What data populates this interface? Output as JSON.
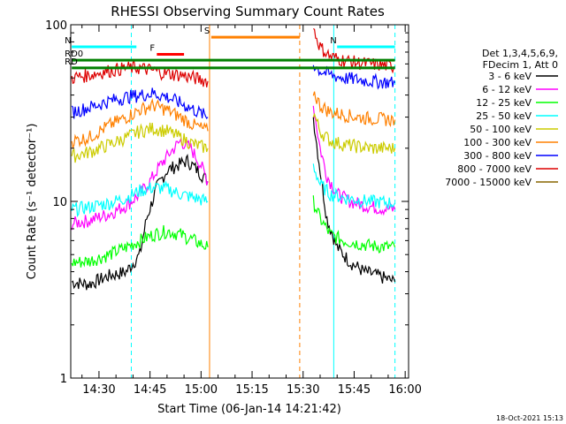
{
  "chart_data": {
    "type": "line",
    "title": "RHESSI Observing Summary Count Rates",
    "xlabel": "Start Time (06-Jan-14 14:21:42)",
    "ylabel": "Count Rate (s⁻¹ detector⁻¹)",
    "y_scale": "log",
    "ylim": [
      1,
      100
    ],
    "x_range": [
      "14:21:42",
      "16:01:00"
    ],
    "x_ticks": [
      "14:30",
      "14:45",
      "15:00",
      "15:15",
      "15:30",
      "15:45",
      "16:00"
    ],
    "y_ticks": [
      "1",
      "10",
      "100"
    ],
    "legend": {
      "placement": "right",
      "header": [
        "Det 1,3,4,5,6,9,",
        "FDecim 1, Att 0"
      ]
    },
    "series": [
      {
        "name": "3 - 6 keV",
        "color": "#000000",
        "x": [
          "14:22:00",
          "14:27:00",
          "14:33:00",
          "14:38:00",
          "14:42:00",
          "14:44:00",
          "14:47:00",
          "14:50:00",
          "14:53:00",
          "14:56:00",
          "14:59:00",
          "15:02:00",
          "15:31:00",
          "15:33:00",
          "15:35:00",
          "15:37:00",
          "15:40:00",
          "15:44:00",
          "15:48:00",
          "15:52:00",
          "15:57:00"
        ],
        "y": [
          3.5,
          3.4,
          3.8,
          4.0,
          5.0,
          8.0,
          12.0,
          15.0,
          16.0,
          17.0,
          15.0,
          13.0,
          null,
          30.0,
          15.0,
          8.0,
          5.5,
          4.5,
          4.0,
          3.8,
          3.5
        ]
      },
      {
        "name": "6 - 12 keV",
        "color": "#ff00ff",
        "x": [
          "14:22:00",
          "14:27:00",
          "14:33:00",
          "14:38:00",
          "14:42:00",
          "14:45:00",
          "14:48:00",
          "14:51:00",
          "14:54:00",
          "14:57:00",
          "15:00:00",
          "15:02:00",
          "15:31:00",
          "15:33:00",
          "15:35:00",
          "15:37:00",
          "15:40:00",
          "15:44:00",
          "15:48:00",
          "15:52:00",
          "15:57:00"
        ],
        "y": [
          7.5,
          7.8,
          8.5,
          9.5,
          11.0,
          13.0,
          16.0,
          19.0,
          22.0,
          20.0,
          16.0,
          13.0,
          null,
          35.0,
          20.0,
          14.0,
          11.0,
          10.0,
          9.5,
          9.2,
          9.0
        ]
      },
      {
        "name": "12 - 25 keV",
        "color": "#00ff00",
        "x": [
          "14:22:00",
          "14:27:00",
          "14:33:00",
          "14:38:00",
          "14:42:00",
          "14:46:00",
          "14:50:00",
          "14:54:00",
          "14:58:00",
          "15:02:00",
          "15:31:00",
          "15:33:00",
          "15:35:00",
          "15:38:00",
          "15:42:00",
          "15:46:00",
          "15:50:00",
          "15:57:00"
        ],
        "y": [
          4.5,
          4.6,
          5.0,
          5.5,
          6.0,
          6.5,
          6.8,
          6.5,
          6.0,
          5.5,
          null,
          10.0,
          8.0,
          6.5,
          6.0,
          5.8,
          5.6,
          5.5
        ]
      },
      {
        "name": "25 - 50 keV",
        "color": "#00ffff",
        "x": [
          "14:22:00",
          "14:27:00",
          "14:33:00",
          "14:38:00",
          "14:42:00",
          "14:46:00",
          "14:50:00",
          "14:54:00",
          "14:58:00",
          "15:02:00",
          "15:31:00",
          "15:33:00",
          "15:35:00",
          "15:38:00",
          "15:42:00",
          "15:46:00",
          "15:50:00",
          "15:57:00"
        ],
        "y": [
          9.0,
          9.3,
          9.8,
          10.5,
          11.5,
          12.0,
          11.8,
          11.0,
          10.5,
          10.0,
          null,
          16.0,
          12.5,
          11.0,
          10.5,
          10.2,
          10.0,
          9.8
        ]
      },
      {
        "name": "50 - 100 keV",
        "color": "#cccc00",
        "x": [
          "14:22:00",
          "14:27:00",
          "14:33:00",
          "14:38:00",
          "14:42:00",
          "14:46:00",
          "14:50:00",
          "14:54:00",
          "14:58:00",
          "15:02:00",
          "15:31:00",
          "15:33:00",
          "15:35:00",
          "15:38:00",
          "15:42:00",
          "15:46:00",
          "15:50:00",
          "15:57:00"
        ],
        "y": [
          18.0,
          19.0,
          21.0,
          23.0,
          25.0,
          26.0,
          25.0,
          23.0,
          21.0,
          20.0,
          null,
          32.0,
          25.0,
          22.0,
          21.0,
          20.5,
          20.0,
          20.0
        ]
      },
      {
        "name": "100 - 300 keV",
        "color": "#ff8000",
        "x": [
          "14:22:00",
          "14:27:00",
          "14:33:00",
          "14:38:00",
          "14:42:00",
          "14:46:00",
          "14:50:00",
          "14:54:00",
          "14:58:00",
          "15:02:00",
          "15:31:00",
          "15:33:00",
          "15:35:00",
          "15:38:00",
          "15:42:00",
          "15:46:00",
          "15:50:00",
          "15:57:00"
        ],
        "y": [
          22.0,
          23.0,
          27.0,
          30.0,
          33.0,
          35.0,
          33.0,
          30.0,
          27.0,
          25.0,
          null,
          42.0,
          35.0,
          32.0,
          31.0,
          30.0,
          29.5,
          29.0
        ]
      },
      {
        "name": "300 - 800 keV",
        "color": "#0000ff",
        "x": [
          "14:22:00",
          "14:27:00",
          "14:33:00",
          "14:38:00",
          "14:42:00",
          "14:46:00",
          "14:50:00",
          "14:54:00",
          "14:58:00",
          "15:02:00",
          "15:31:00",
          "15:33:00",
          "15:35:00",
          "15:38:00",
          "15:42:00",
          "15:46:00",
          "15:50:00",
          "15:57:00"
        ],
        "y": [
          32.0,
          34.0,
          37.0,
          39.0,
          40.0,
          41.0,
          39.0,
          36.0,
          33.0,
          30.0,
          null,
          60.0,
          55.0,
          52.0,
          50.0,
          49.0,
          48.0,
          47.0
        ]
      },
      {
        "name": "800 - 7000 keV",
        "color": "#dd0000",
        "x": [
          "14:22:00",
          "14:27:00",
          "14:33:00",
          "14:38:00",
          "14:42:00",
          "14:46:00",
          "14:50:00",
          "14:54:00",
          "14:58:00",
          "15:02:00",
          "15:31:00",
          "15:33:00",
          "15:35:00",
          "15:38:00",
          "15:42:00",
          "15:46:00",
          "15:50:00",
          "15:57:00"
        ],
        "y": [
          50.0,
          52.0,
          55.0,
          57.0,
          57.0,
          55.0,
          53.0,
          52.0,
          50.0,
          48.0,
          null,
          95.0,
          75.0,
          66.0,
          63.0,
          61.0,
          60.0,
          58.0
        ]
      },
      {
        "name": "7000 - 15000 keV",
        "color": "#886600",
        "x": [
          "14:22:00",
          "15:00:00"
        ],
        "y": [
          null,
          null
        ]
      }
    ],
    "annotations": {
      "markers": [
        "N",
        "F",
        "S",
        "RD0",
        "RD"
      ],
      "flag_bars": [
        {
          "label": "N",
          "color": "#00ffff",
          "x_start": "14:22:00",
          "x_end": "14:41:00",
          "y": 75
        },
        {
          "label": "N",
          "color": "#00ffff",
          "x_start": "15:40:00",
          "x_end": "15:57:00",
          "y": 75
        },
        {
          "label": "F",
          "color": "#ff0000",
          "x_start": "14:47:00",
          "x_end": "14:55:00",
          "y": 68
        },
        {
          "label": "S",
          "color": "#ff8000",
          "x_start": "15:03:00",
          "x_end": "15:29:00",
          "y": 85
        },
        {
          "label": "RD0",
          "color": "#008000",
          "x_start": "14:22:00",
          "x_end": "15:57:00",
          "y": 63
        },
        {
          "label": "RD",
          "color": "#008000",
          "x_start": "14:22:00",
          "x_end": "15:57:00",
          "y": 57
        }
      ],
      "vlines": [
        {
          "x": "14:39:30",
          "color": "#00ffff",
          "style": "dashed"
        },
        {
          "x": "15:02:30",
          "color": "#ff8000",
          "style": "solid"
        },
        {
          "x": "15:29:00",
          "color": "#ff8000",
          "style": "dashed"
        },
        {
          "x": "15:39:00",
          "color": "#00ffff",
          "style": "solid"
        },
        {
          "x": "15:57:00",
          "color": "#00ffff",
          "style": "dashed"
        }
      ]
    },
    "timestamp": "18-Oct-2021 15:13"
  }
}
